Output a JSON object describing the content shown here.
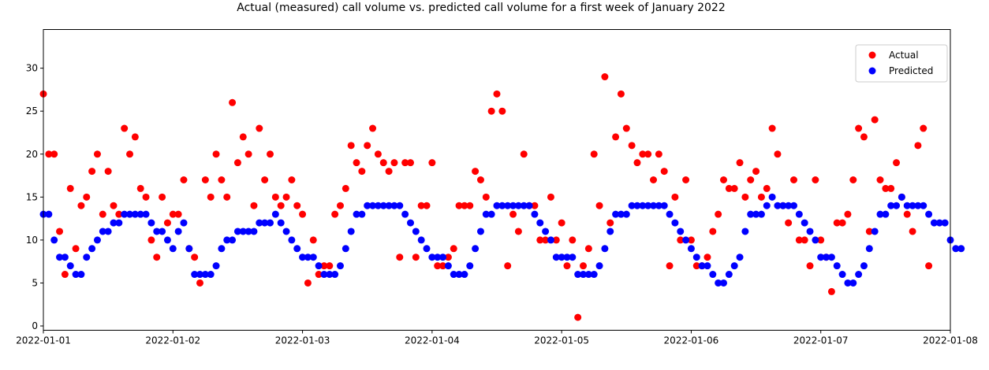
{
  "chart_data": {
    "type": "scatter",
    "title": "Actual (measured) call volume vs. predicted call volume for a first week of January 2022",
    "xlabel": "",
    "ylabel": "",
    "xlim": [
      "2022-01-01T00:00",
      "2022-01-08T00:00"
    ],
    "ylim": [
      -0.5,
      34.5
    ],
    "x_ticks": [
      "2022-01-01",
      "2022-01-02",
      "2022-01-03",
      "2022-01-04",
      "2022-01-05",
      "2022-01-06",
      "2022-01-07",
      "2022-01-08"
    ],
    "y_ticks": [
      0,
      5,
      10,
      15,
      20,
      25,
      30
    ],
    "grid": false,
    "legend": "top-right",
    "series": [
      {
        "name": "Actual",
        "color": "#ff0000",
        "x_start": "2022-01-01T00:00",
        "x_step_hours": 1,
        "values": [
          27,
          20,
          20,
          11,
          6,
          16,
          9,
          14,
          15,
          18,
          20,
          13,
          18,
          14,
          13,
          23,
          20,
          22,
          16,
          15,
          10,
          8,
          15,
          12,
          13,
          13,
          17,
          9,
          8,
          5,
          17,
          15,
          20,
          17,
          15,
          26,
          19,
          22,
          20,
          14,
          23,
          17,
          20,
          15,
          14,
          15,
          17,
          14,
          13,
          5,
          10,
          6,
          7,
          7,
          13,
          14,
          16,
          21,
          19,
          18,
          21,
          23,
          20,
          19,
          18,
          19,
          8,
          19,
          19,
          8,
          14,
          14,
          19,
          7,
          7,
          8,
          9,
          14,
          14,
          14,
          18,
          17,
          15,
          25,
          27,
          25,
          7,
          13,
          11,
          20,
          14,
          14,
          10,
          10,
          15,
          10,
          12,
          7,
          10,
          1,
          7,
          9,
          20,
          14,
          29,
          12,
          22,
          27,
          23,
          21,
          19,
          20,
          20,
          17,
          20,
          18,
          7,
          15,
          10,
          17,
          10,
          7,
          7,
          8,
          11,
          13,
          17,
          16,
          16,
          19,
          15,
          17,
          18,
          15,
          16,
          23,
          20,
          14,
          12,
          17,
          10,
          10,
          7,
          17,
          10,
          8,
          4,
          12,
          12,
          13,
          17,
          23,
          22,
          11,
          24,
          17,
          16,
          16,
          19,
          15,
          13,
          11,
          21,
          23,
          7
        ]
      },
      {
        "name": "Predicted",
        "color": "#0000ff",
        "x_start": "2022-01-01T00:00",
        "x_step_hours": 1,
        "values": [
          13,
          13,
          10,
          8,
          8,
          7,
          6,
          6,
          8,
          9,
          10,
          11,
          11,
          12,
          12,
          13,
          13,
          13,
          13,
          13,
          12,
          11,
          11,
          10,
          9,
          11,
          12,
          9,
          6,
          6,
          6,
          6,
          7,
          9,
          10,
          10,
          11,
          11,
          11,
          11,
          12,
          12,
          12,
          13,
          12,
          11,
          10,
          9,
          8,
          8,
          8,
          7,
          6,
          6,
          6,
          7,
          9,
          11,
          13,
          13,
          14,
          14,
          14,
          14,
          14,
          14,
          14,
          13,
          12,
          11,
          10,
          9,
          8,
          8,
          8,
          7,
          6,
          6,
          6,
          7,
          9,
          11,
          13,
          13,
          14,
          14,
          14,
          14,
          14,
          14,
          14,
          13,
          12,
          11,
          10,
          8,
          8,
          8,
          8,
          6,
          6,
          6,
          6,
          7,
          9,
          11,
          13,
          13,
          13,
          14,
          14,
          14,
          14,
          14,
          14,
          14,
          13,
          12,
          11,
          10,
          9,
          8,
          7,
          7,
          6,
          5,
          5,
          6,
          7,
          8,
          11,
          13,
          13,
          13,
          14,
          15,
          14,
          14,
          14,
          14,
          13,
          12,
          11,
          10,
          8,
          8,
          8,
          7,
          6,
          5,
          5,
          6,
          7,
          9,
          11,
          13,
          13,
          14,
          14,
          15,
          14,
          14,
          14,
          14,
          13,
          12,
          12,
          12,
          10,
          9,
          9
        ]
      }
    ]
  }
}
